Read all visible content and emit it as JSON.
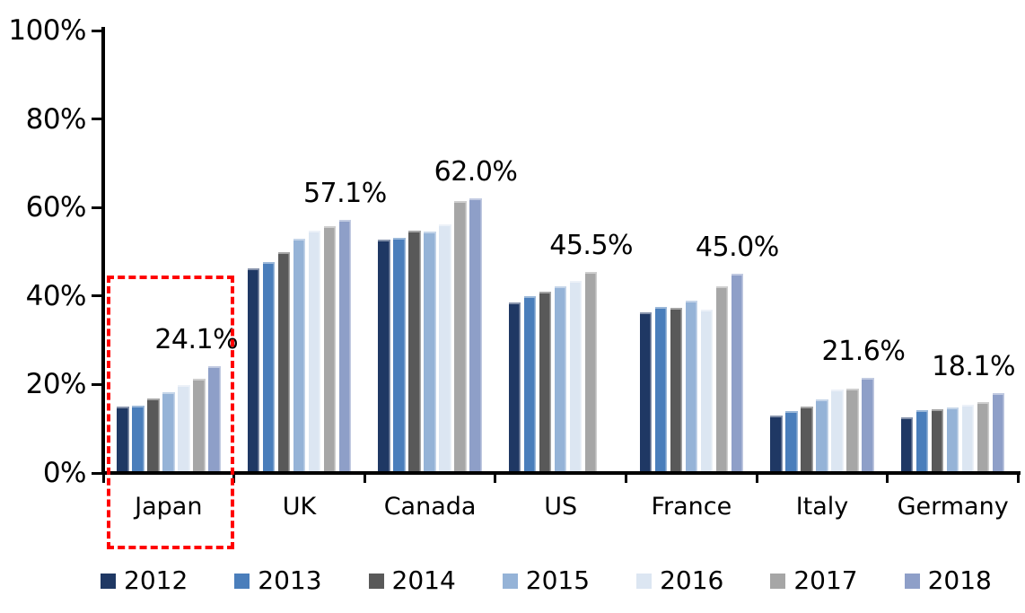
{
  "chart_data": {
    "type": "bar",
    "title": "",
    "xlabel": "",
    "ylabel": "",
    "categories": [
      "Japan",
      "UK",
      "Canada",
      "US",
      "France",
      "Italy",
      "Germany"
    ],
    "series": [
      {
        "name": "2012",
        "color": "#1F3864",
        "values": [
          15.1,
          46.2,
          52.8,
          38.5,
          36.4,
          13.0,
          12.5
        ]
      },
      {
        "name": "2013",
        "color": "#4A7EBB",
        "values": [
          15.3,
          47.6,
          53.2,
          39.9,
          37.5,
          13.9,
          14.2
        ]
      },
      {
        "name": "2014",
        "color": "#595959",
        "values": [
          16.9,
          49.8,
          54.7,
          41.0,
          37.4,
          15.0,
          14.4
        ]
      },
      {
        "name": "2015",
        "color": "#95B3D7",
        "values": [
          18.2,
          53.0,
          54.5,
          42.1,
          39.0,
          16.7,
          14.9
        ]
      },
      {
        "name": "2016",
        "color": "#DCE6F2",
        "values": [
          19.9,
          54.7,
          56.1,
          43.4,
          37.0,
          18.8,
          15.5
        ]
      },
      {
        "name": "2017",
        "color": "#A6A6A6",
        "values": [
          21.3,
          55.7,
          61.5,
          45.5,
          42.2,
          19.1,
          16.0
        ]
      },
      {
        "name": "2018",
        "color": "#8E9FC8",
        "values": [
          24.1,
          57.1,
          62.0,
          null,
          45.0,
          21.6,
          18.1
        ]
      }
    ],
    "value_labels": [
      {
        "category": "Japan",
        "text": "24.1%",
        "dx": -20
      },
      {
        "category": "UK",
        "text": "57.1%",
        "dx": 0
      },
      {
        "category": "Canada",
        "text": "62.0%",
        "dx": 0
      },
      {
        "category": "US",
        "text": "45.5%",
        "dx": 0
      },
      {
        "category": "France",
        "text": "45.0%",
        "dx": 0
      },
      {
        "category": "Italy",
        "text": "21.6%",
        "dx": -5
      },
      {
        "category": "Germany",
        "text": "18.1%",
        "dx": -28
      }
    ],
    "y_ticks": [
      "0%",
      "20%",
      "40%",
      "60%",
      "80%",
      "100%"
    ],
    "ylim": [
      0,
      100
    ],
    "grid": false,
    "legend_position": "bottom",
    "highlight_box": {
      "category": "Japan",
      "color": "#FF0000",
      "style": "dashed"
    }
  }
}
